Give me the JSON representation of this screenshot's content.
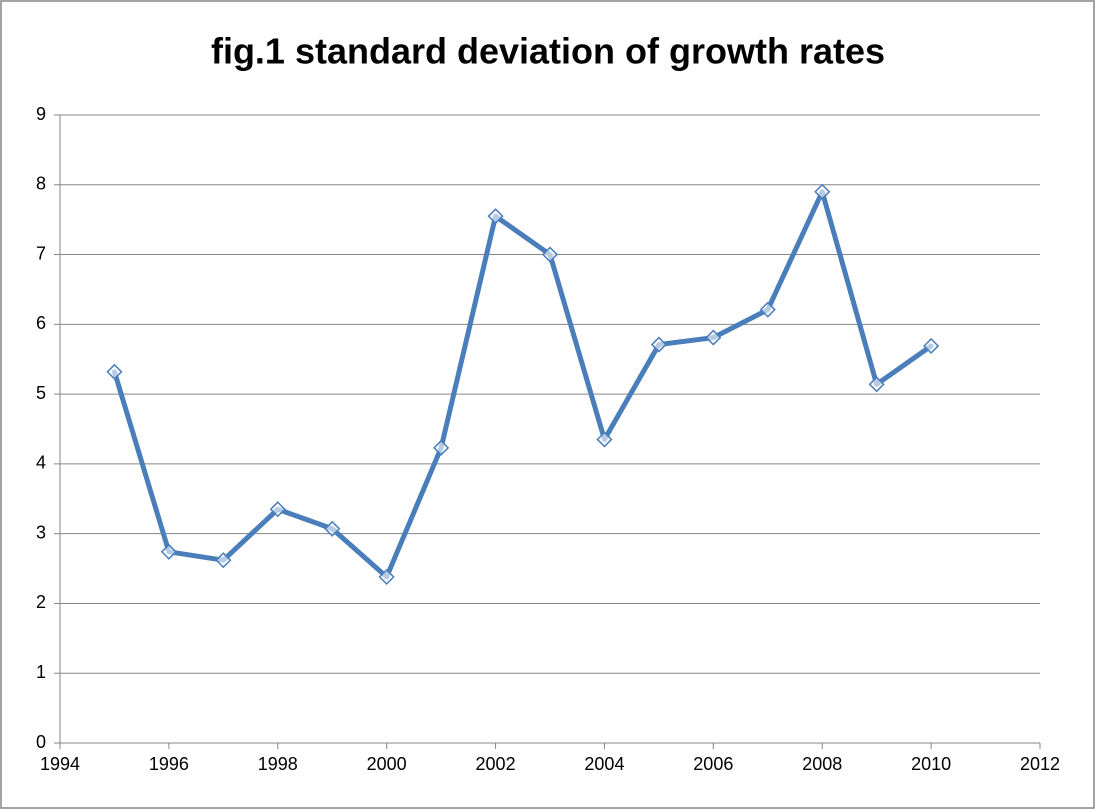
{
  "chart_data": {
    "type": "line",
    "title": "fig.1 standard deviation of growth rates",
    "x": [
      1995,
      1996,
      1997,
      1998,
      1999,
      2000,
      2001,
      2002,
      2003,
      2004,
      2005,
      2006,
      2007,
      2008,
      2009,
      2010
    ],
    "values": [
      5.32,
      2.74,
      2.62,
      3.35,
      3.07,
      2.38,
      4.23,
      7.55,
      7.0,
      4.35,
      5.71,
      5.81,
      6.21,
      7.9,
      5.14,
      5.69
    ],
    "color": "#4a7ebb",
    "xlim": [
      1994,
      2012
    ],
    "xticks": [
      1994,
      1996,
      1998,
      2000,
      2002,
      2004,
      2006,
      2008,
      2010,
      2012
    ],
    "ylim": [
      0,
      9
    ],
    "yticks": [
      0,
      1,
      2,
      3,
      4,
      5,
      6,
      7,
      8,
      9
    ],
    "grid": true
  }
}
